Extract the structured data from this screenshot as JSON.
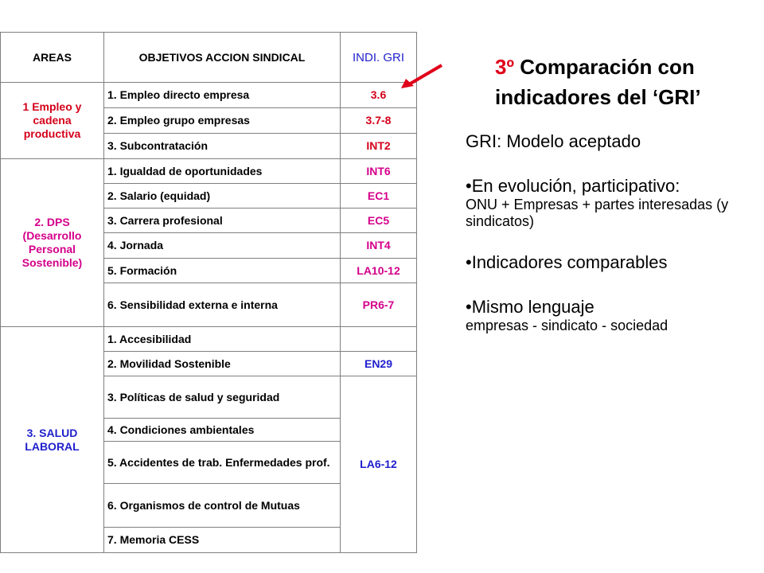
{
  "table": {
    "headers": {
      "areas": "AREAS",
      "objectives": "OBJETIVOS ACCION SINDICAL",
      "indicators": "INDI. GRI"
    },
    "groups": [
      {
        "area": "1 Empleo y cadena productiva",
        "color": "#d4001a",
        "rows": [
          {
            "objective": "1. Empleo directo empresa",
            "indicator": "3.6"
          },
          {
            "objective": "2. Empleo grupo empresas",
            "indicator": "3.7-8"
          },
          {
            "objective": "3. Subcontratación",
            "indicator": "INT2"
          }
        ]
      },
      {
        "area": "2.  DPS (Desarrollo Personal Sostenible)",
        "color": "#d4008a",
        "rows": [
          {
            "objective": "1. Igualdad de oportunidades",
            "indicator": "INT6"
          },
          {
            "objective": "2. Salario (equidad)",
            "indicator": "EC1"
          },
          {
            "objective": "3. Carrera profesional",
            "indicator": "EC5"
          },
          {
            "objective": "4. Jornada",
            "indicator": "INT4"
          },
          {
            "objective": "5. Formación",
            "indicator": "LA10-12"
          },
          {
            "objective": "6. Sensibilidad externa e interna",
            "indicator": "PR6-7"
          }
        ]
      },
      {
        "area": "3.  SALUD LABORAL",
        "color": "#1f1fcc",
        "rows": [
          {
            "objective": "1. Accesibilidad",
            "indicator": ""
          },
          {
            "objective": "2. Movilidad Sostenible",
            "indicator": "EN29"
          },
          {
            "objective": "3. Políticas de salud y seguridad",
            "indicator": "LA6-12"
          },
          {
            "objective": "4. Condiciones ambientales",
            "indicator": ""
          },
          {
            "objective": "5. Accidentes de trab. Enfermedades prof.",
            "indicator": ""
          },
          {
            "objective": "6. Organismos de control de Mutuas",
            "indicator": ""
          },
          {
            "objective": "7. Memoria CESS",
            "indicator": ""
          }
        ]
      }
    ]
  },
  "title": {
    "prefix": "3º",
    "rest": " Comparación con indicadores del ‘GRI’"
  },
  "panel": {
    "line1": "GRI: Modelo aceptado",
    "bullet1": "•En evolución, participativo:",
    "bullet1_sub": "ONU + Empresas + partes interesadas (y sindicatos)",
    "bullet2": "•Indicadores comparables",
    "bullet3": "•Mismo lenguaje",
    "bullet3_sub": "empresas - sindicato - sociedad"
  },
  "colors": {
    "accent_red": "#e0001a",
    "indicator_blue": "#1f1fcc",
    "area2_magenta": "#d4008a"
  }
}
